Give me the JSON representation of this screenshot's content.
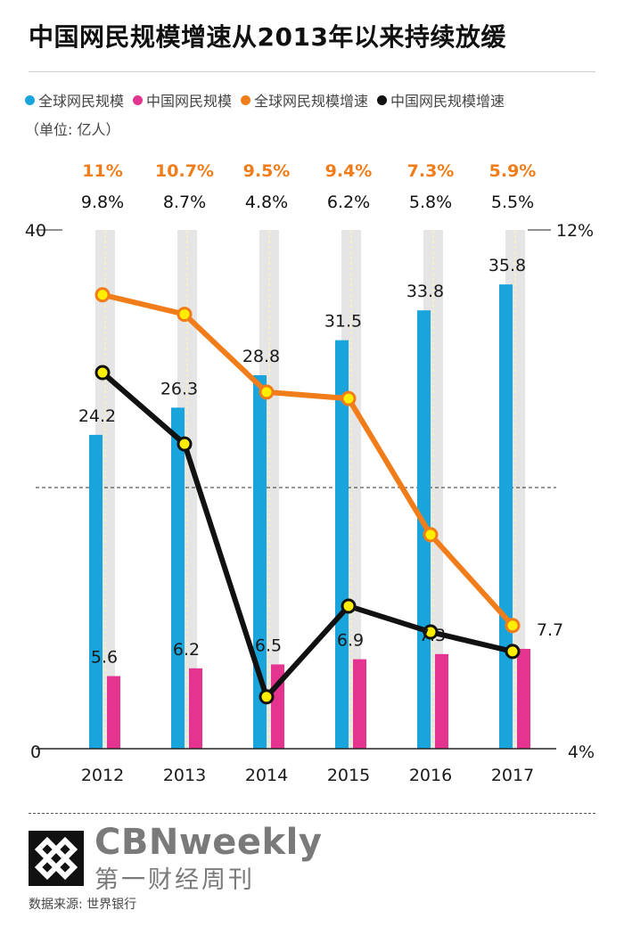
{
  "title": "中国网民规模增速从2013年以来持续放缓",
  "unit": "（单位: 亿人）",
  "legend": [
    {
      "label": "全球网民规模",
      "color": "#1aa4dc"
    },
    {
      "label": "中国网民规模",
      "color": "#e4348f"
    },
    {
      "label": "全球网民规模增速",
      "color": "#f07d1a"
    },
    {
      "label": "中国网民规模增速",
      "color": "#111111"
    }
  ],
  "colors": {
    "global_bar": "#1aa4dc",
    "china_bar": "#e4348f",
    "global_line": "#f07d1a",
    "china_line": "#111111",
    "marker_fill": "#ffee00",
    "track": "#e5e5e5"
  },
  "chart_data": {
    "type": "bar",
    "categories": [
      "2012",
      "2013",
      "2014",
      "2015",
      "2016",
      "2017"
    ],
    "series": [
      {
        "name": "全球网民规模",
        "axis": "left",
        "values": [
          24.2,
          26.3,
          28.8,
          31.5,
          33.8,
          35.8
        ],
        "labels": [
          "24.2",
          "26.3",
          "28.8",
          "31.5",
          "33.8",
          "35.8"
        ]
      },
      {
        "name": "中国网民规模",
        "axis": "left",
        "values": [
          5.6,
          6.2,
          6.5,
          6.9,
          7.3,
          7.7
        ],
        "labels": [
          "5.6",
          "6.2",
          "6.5",
          "6.9",
          "7.3",
          "7.7"
        ]
      },
      {
        "name": "全球网民规模增速",
        "type": "line",
        "axis": "right",
        "values": [
          11.0,
          10.7,
          9.5,
          9.4,
          7.3,
          5.9
        ],
        "labels": [
          "11%",
          "10.7%",
          "9.5%",
          "9.4%",
          "7.3%",
          "5.9%"
        ]
      },
      {
        "name": "中国网民规模增速",
        "type": "line",
        "axis": "right",
        "values": [
          9.8,
          8.7,
          4.8,
          6.2,
          5.8,
          5.5
        ],
        "labels": [
          "9.8%",
          "8.7%",
          "4.8%",
          "6.2%",
          "5.8%",
          "5.5%"
        ]
      }
    ],
    "left_axis": {
      "ticks": [
        "40",
        "0"
      ],
      "range": [
        0,
        40
      ]
    },
    "right_axis": {
      "ticks": [
        "12%",
        "4%"
      ],
      "range": [
        4,
        12
      ]
    },
    "midline": "dashed"
  },
  "brand": {
    "en": "CBNweekly",
    "cn": "第一财经周刊"
  },
  "source": "数据来源: 世界银行"
}
